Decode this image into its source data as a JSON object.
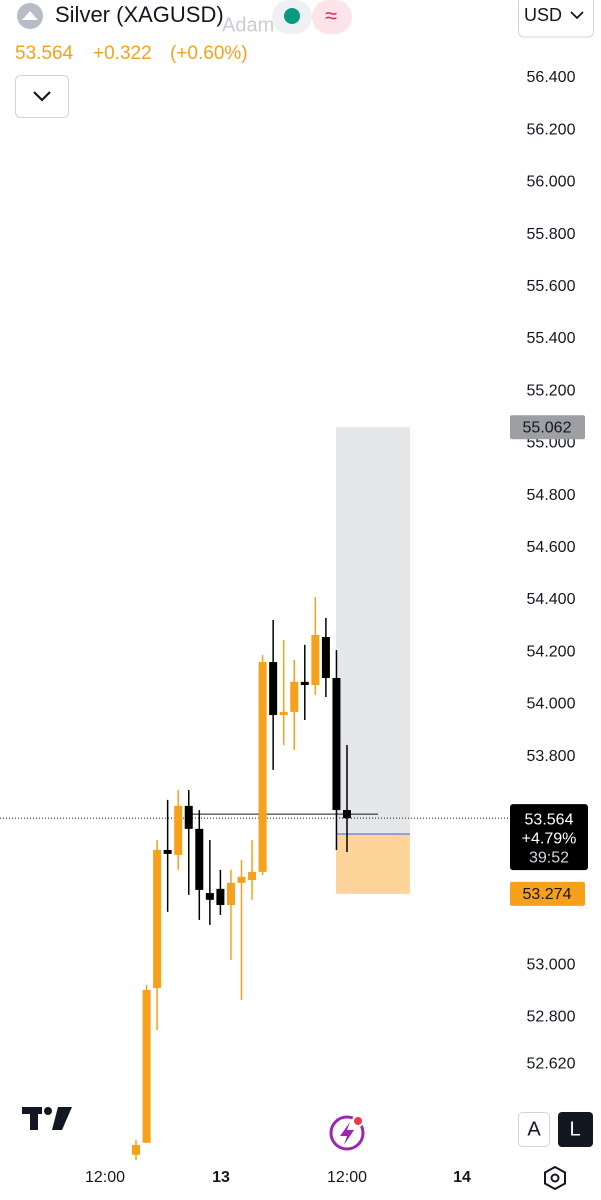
{
  "chart_data": {
    "type": "candlestick",
    "title": "Silver (XAGUSD)",
    "open": [
      52.274,
      52.32,
      52.913,
      53.442,
      53.423,
      53.611,
      53.523,
      53.277,
      53.293,
      53.231,
      53.316,
      53.327,
      53.358,
      54.162,
      53.959,
      53.971,
      54.086,
      54.074,
      54.258,
      54.101,
      53.595
    ],
    "high": [
      52.331,
      52.925,
      53.48,
      53.634,
      53.672,
      53.672,
      53.595,
      53.48,
      53.366,
      53.366,
      53.404,
      53.48,
      54.189,
      54.323,
      54.247,
      54.17,
      54.228,
      54.411,
      54.331,
      54.208,
      53.844
    ],
    "low": [
      52.254,
      52.32,
      52.752,
      53.205,
      53.366,
      53.27,
      53.174,
      53.155,
      53.193,
      53.021,
      52.867,
      53.251,
      53.346,
      53.749,
      53.844,
      53.825,
      53.94,
      54.036,
      54.028,
      53.442,
      53.434
    ],
    "close": [
      52.312,
      52.906,
      53.442,
      53.427,
      53.611,
      53.523,
      53.289,
      53.251,
      53.231,
      53.316,
      53.339,
      53.358,
      54.162,
      53.959,
      53.971,
      54.086,
      54.074,
      54.266,
      54.101,
      53.595,
      53.564
    ],
    "color_up": "#f7a01c",
    "color_down": "#000000",
    "ylim": [
      52.254,
      56.699
    ],
    "yticks": [
      {
        "value": 56.4,
        "label": "56.400"
      },
      {
        "value": 56.2,
        "label": "56.200"
      },
      {
        "value": 56.0,
        "label": "56.000"
      },
      {
        "value": 55.8,
        "label": "55.800"
      },
      {
        "value": 55.6,
        "label": "55.600"
      },
      {
        "value": 55.4,
        "label": "55.400"
      },
      {
        "value": 55.2,
        "label": "55.200"
      },
      {
        "value": 55.0,
        "label": "55.000"
      },
      {
        "value": 54.8,
        "label": "54.800"
      },
      {
        "value": 54.6,
        "label": "54.600"
      },
      {
        "value": 54.4,
        "label": "54.400"
      },
      {
        "value": 54.2,
        "label": "54.200"
      },
      {
        "value": 54.0,
        "label": "54.000"
      },
      {
        "value": 53.8,
        "label": "53.800"
      },
      {
        "value": 53.0,
        "label": "53.000"
      },
      {
        "value": 52.8,
        "label": "52.800"
      },
      {
        "value": 52.62,
        "label": "52.620"
      }
    ],
    "xtick_labels": [
      "12:00",
      "13",
      "12:00",
      "14"
    ],
    "position": {
      "target": 55.062,
      "entry": 53.503,
      "stop": 53.274,
      "target_color": "#9e9fa3",
      "entry_color": "#2962ff",
      "stop_color": "#f7a01c"
    },
    "change": "+0.322",
    "change_pct": "(+0.60%)",
    "session_change": "+4.79%",
    "countdown": "39:52",
    "watermark": "Adam"
  },
  "ui": {
    "currency": "USD",
    "button_a": "A",
    "button_l": "L"
  }
}
